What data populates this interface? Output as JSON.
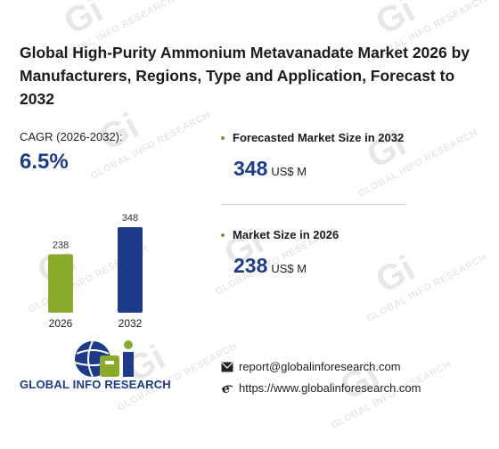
{
  "watermark": {
    "text": "GLOBAL INFO RESEARCH",
    "logo": "Gi"
  },
  "title": "Global High-Purity Ammonium Metavanadate Market 2026 by Manufacturers, Regions, Type and Application, Forecast to 2032",
  "cagr": {
    "label": "CAGR (2026-2032):",
    "value": "6.5%"
  },
  "chart_data": {
    "type": "bar",
    "categories": [
      "2026",
      "2032"
    ],
    "values": [
      238,
      348
    ],
    "data_labels": [
      "238",
      "348"
    ],
    "colors": [
      "#8bab2a",
      "#1e3a8a"
    ],
    "title": "",
    "xlabel": "",
    "ylabel": "",
    "ylim": [
      0,
      348
    ],
    "grid": false
  },
  "metrics": [
    {
      "label": "Forecasted Market Size in 2032",
      "value": "348",
      "unit": "US$ M"
    },
    {
      "label": "Market Size in 2026",
      "value": "238",
      "unit": "US$ M"
    }
  ],
  "brand": {
    "name": "GLOBAL INFO RESEARCH",
    "logo_icon": "globe-gi-logo-icon"
  },
  "contact": {
    "email": "report@globalinforesearch.com",
    "email_icon": "envelope-icon",
    "website": "https://www.globalinforesearch.com",
    "website_icon": "ie-browser-icon"
  },
  "colors": {
    "accent_blue": "#1e3a8a",
    "accent_green": "#8bab2a",
    "dot_green": "#7a9b2a"
  }
}
